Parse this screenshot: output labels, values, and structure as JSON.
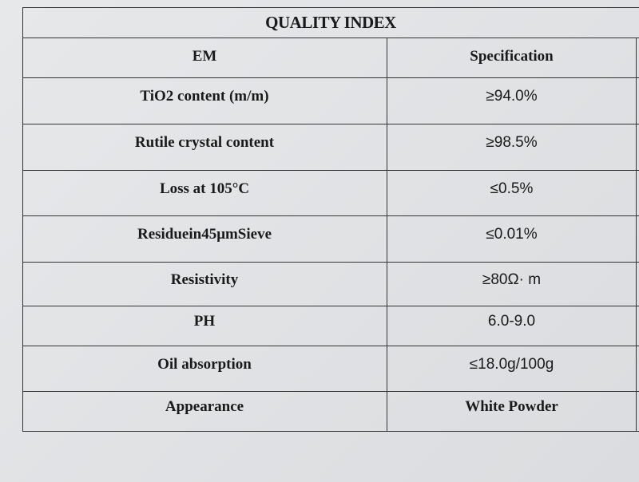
{
  "table": {
    "title": "QUALITY INDEX",
    "header": [
      "EM",
      "Specification"
    ],
    "rows": [
      [
        "TiO2 content (m/m)",
        "≥94.0%"
      ],
      [
        "Rutile crystal content",
        "≥98.5%"
      ],
      [
        "Loss at 105°C",
        "≤0.5%"
      ],
      [
        "Residuein45μmSieve",
        "≤0.01%"
      ],
      [
        "Resistivity",
        "≥80Ω· m"
      ],
      [
        "PH",
        "6.0-9.0"
      ],
      [
        "Oil absorption",
        "≤18.0g/100g"
      ],
      [
        "Appearance",
        "White Powder"
      ]
    ]
  }
}
